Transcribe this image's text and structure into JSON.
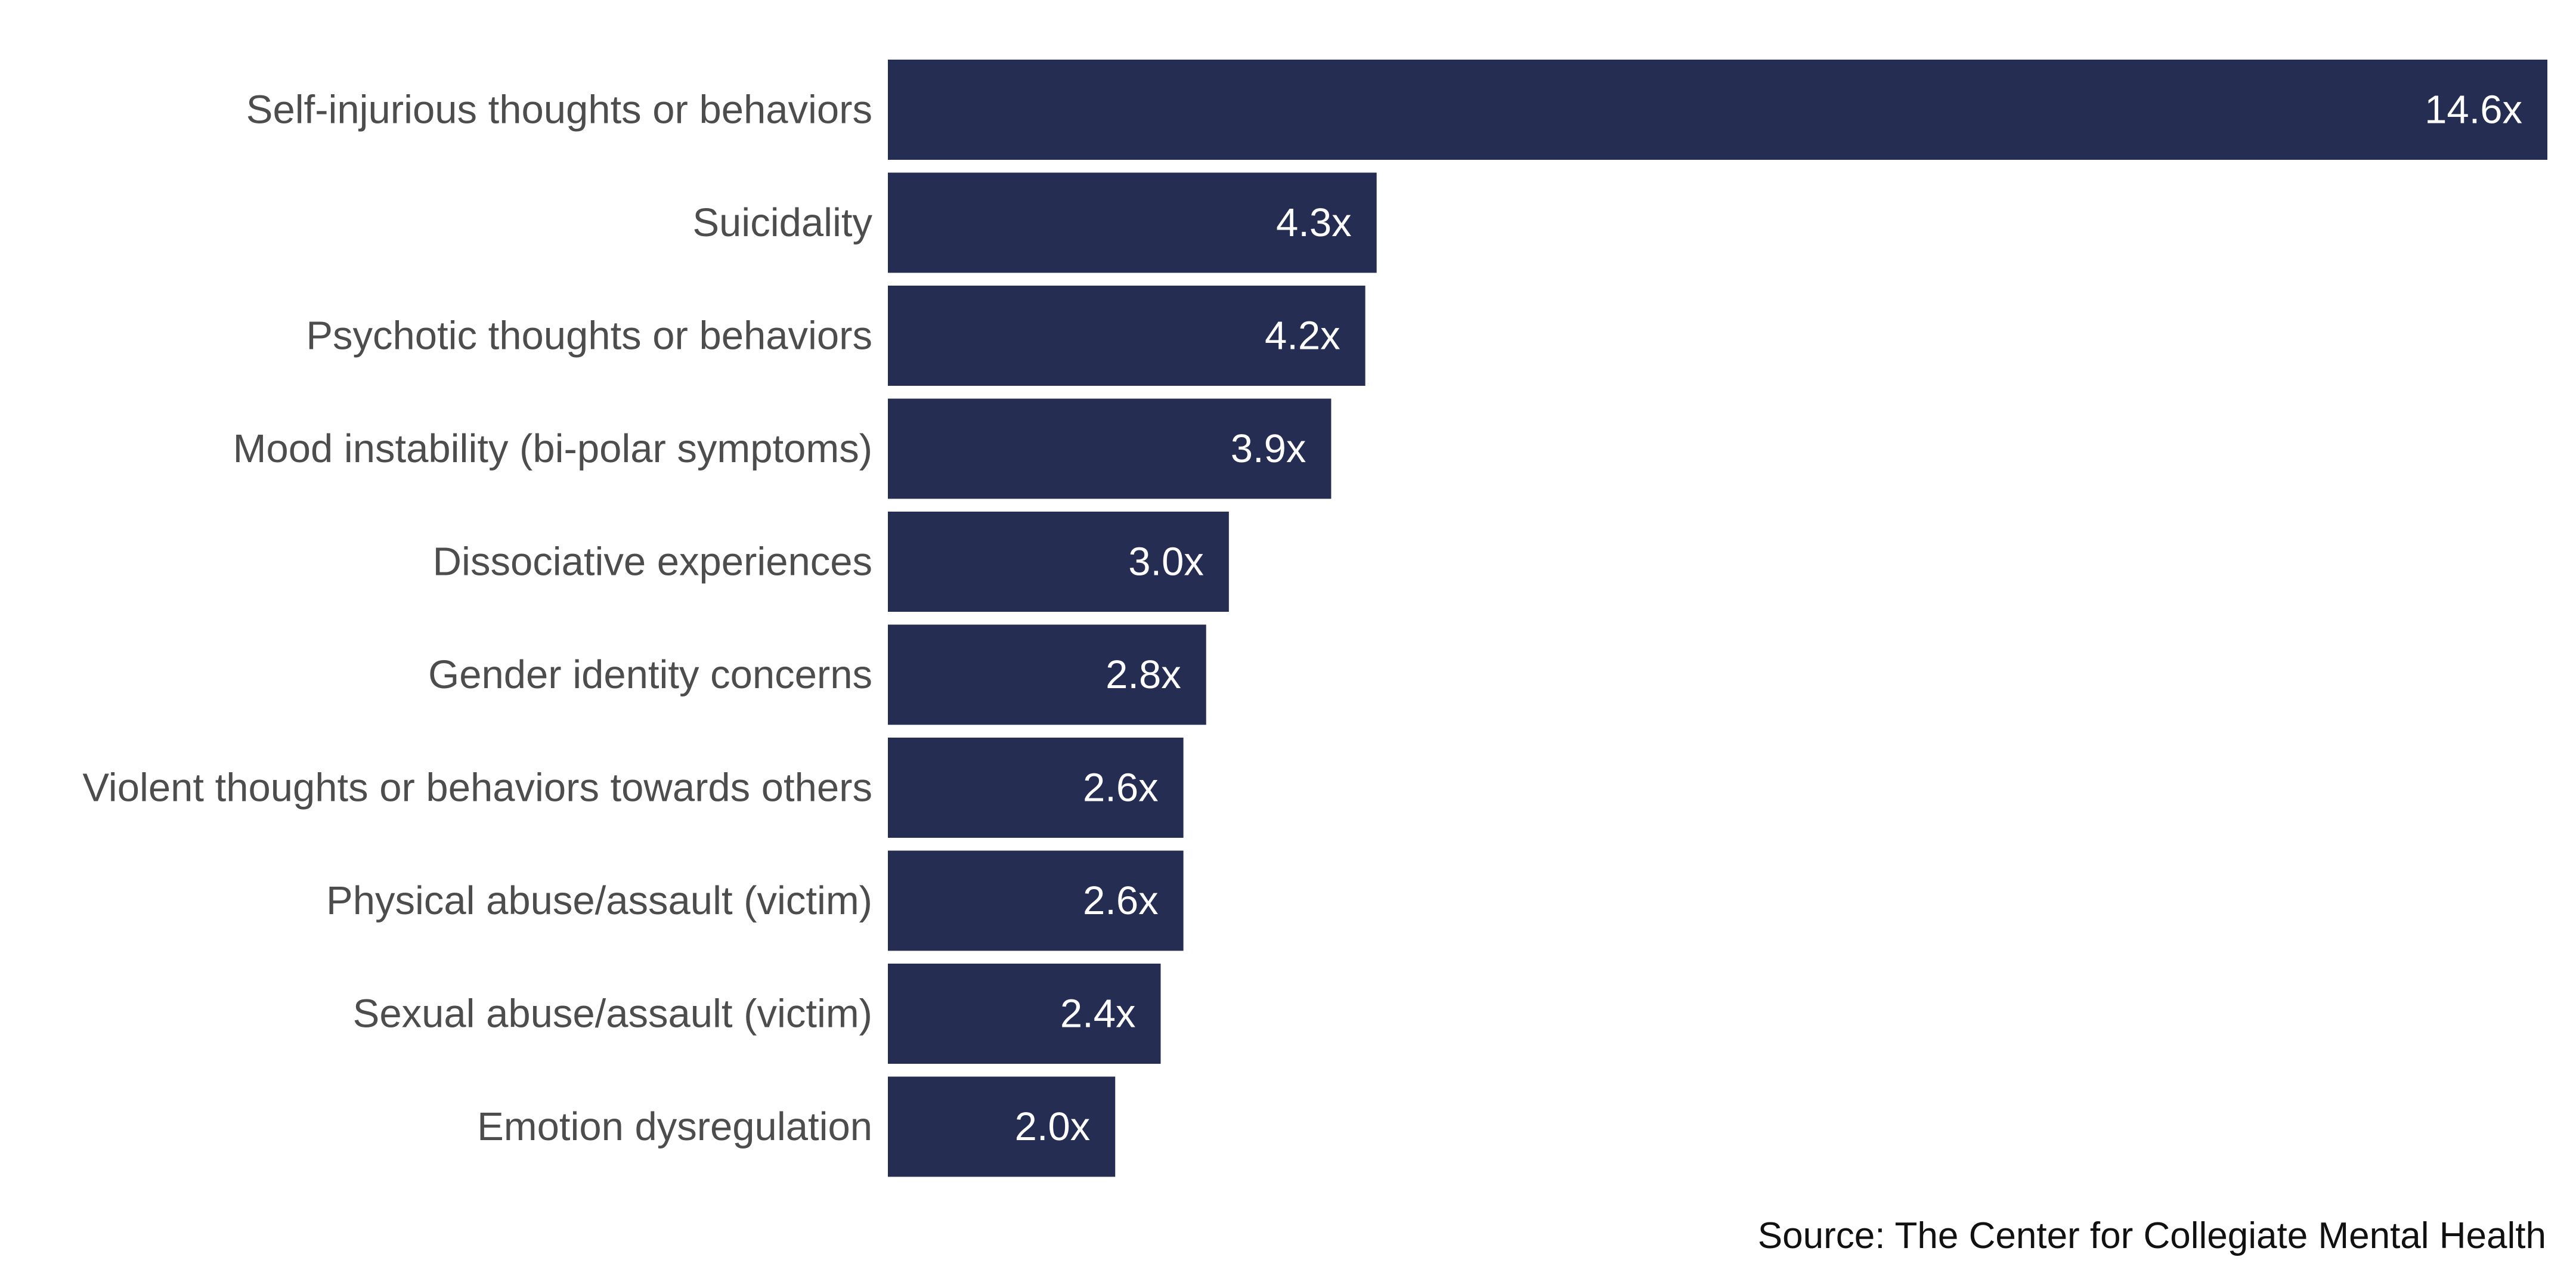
{
  "chart_data": {
    "type": "bar",
    "orientation": "horizontal",
    "title": "",
    "xlabel": "",
    "ylabel": "",
    "xlim": [
      0,
      14.6
    ],
    "grid": false,
    "legend": "none",
    "categories": [
      "Self-injurious thoughts or behaviors",
      "Suicidality",
      "Psychotic thoughts or behaviors",
      "Mood instability (bi-polar symptoms)",
      "Dissociative experiences",
      "Gender identity concerns",
      "Violent thoughts or behaviors towards others",
      "Physical abuse/assault (victim)",
      "Sexual abuse/assault (victim)",
      "Emotion dysregulation"
    ],
    "values": [
      14.6,
      4.3,
      4.2,
      3.9,
      3.0,
      2.8,
      2.6,
      2.6,
      2.4,
      2.0
    ],
    "data_labels": [
      "14.6x",
      "4.3x",
      "4.2x",
      "3.9x",
      "3.0x",
      "2.8x",
      "2.6x",
      "2.6x",
      "2.4x",
      "2.0x"
    ],
    "colors": {
      "bar": "#252d53",
      "category_text": "#4d4d4d",
      "value_text": "#ffffff"
    }
  },
  "source": "Source: The Center for Collegiate Mental Health"
}
